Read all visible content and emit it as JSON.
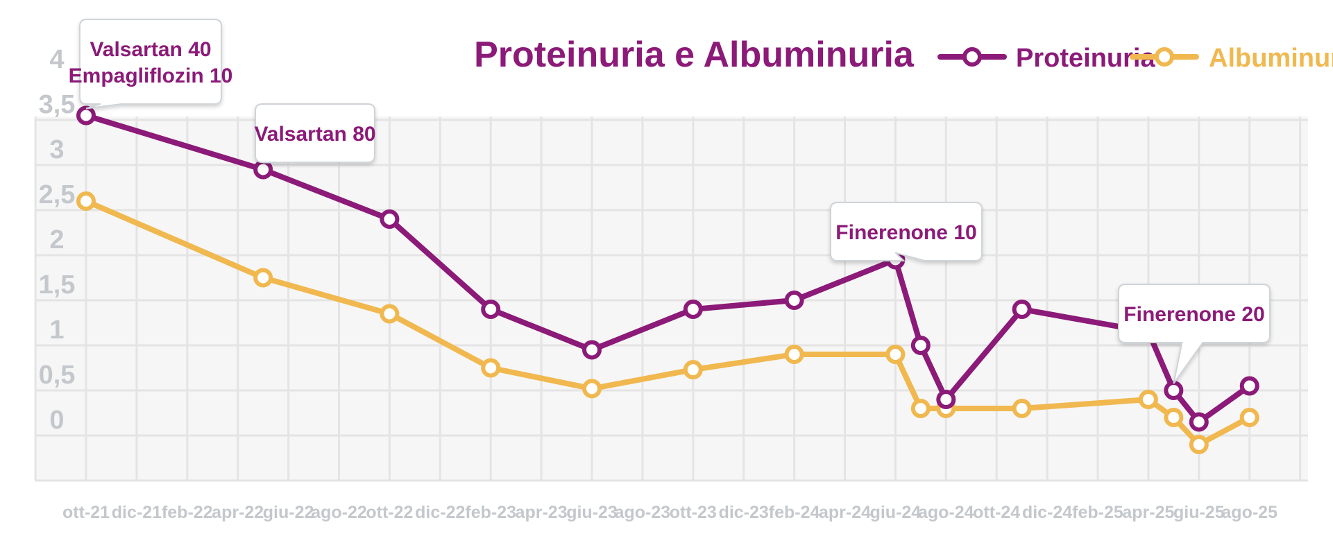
{
  "chart_data": {
    "type": "line",
    "title": "Proteinuria e Albuminuria",
    "xlabel": "",
    "ylabel": "",
    "ylim": [
      0,
      4
    ],
    "yticks": [
      "0",
      "0,5",
      "1",
      "1,5",
      "2",
      "2,5",
      "3",
      "3,5",
      "4"
    ],
    "xticks": [
      "ott-21",
      "dic-21",
      "feb-22",
      "apr-22",
      "giu-22",
      "ago-22",
      "ott-22",
      "dic-22",
      "feb-23",
      "apr-23",
      "giu-23",
      "ago-23",
      "ott-23",
      "dic-23",
      "feb-24",
      "apr-24",
      "giu-24",
      "ago-24",
      "ott-24",
      "dic-24",
      "feb-25",
      "apr-25",
      "giu-25",
      "ago-25"
    ],
    "legend_position": "top-right",
    "series": [
      {
        "name": "Proteinuria",
        "color": "#8b1a78",
        "points": [
          {
            "x": 0,
            "y": 3.55
          },
          {
            "x": 7,
            "y": 2.95
          },
          {
            "x": 12,
            "y": 2.4
          },
          {
            "x": 16,
            "y": 1.4
          },
          {
            "x": 20,
            "y": 0.95
          },
          {
            "x": 24,
            "y": 1.4
          },
          {
            "x": 28,
            "y": 1.5
          },
          {
            "x": 32,
            "y": 1.95
          },
          {
            "x": 33,
            "y": 1.0
          },
          {
            "x": 34,
            "y": 0.4
          },
          {
            "x": 37,
            "y": 1.4
          },
          {
            "x": 42,
            "y": 1.15
          },
          {
            "x": 43,
            "y": 0.5
          },
          {
            "x": 44,
            "y": 0.15
          },
          {
            "x": 46,
            "y": 0.55
          }
        ]
      },
      {
        "name": "Albuminuria",
        "color": "#f0b84f",
        "points": [
          {
            "x": 0,
            "y": 2.6
          },
          {
            "x": 7,
            "y": 1.75
          },
          {
            "x": 12,
            "y": 1.35
          },
          {
            "x": 16,
            "y": 0.75
          },
          {
            "x": 20,
            "y": 0.52
          },
          {
            "x": 24,
            "y": 0.73
          },
          {
            "x": 28,
            "y": 0.9
          },
          {
            "x": 32,
            "y": 0.9
          },
          {
            "x": 33,
            "y": 0.3
          },
          {
            "x": 34,
            "y": 0.3
          },
          {
            "x": 37,
            "y": 0.3
          },
          {
            "x": 42,
            "y": 0.4
          },
          {
            "x": 43,
            "y": 0.2
          },
          {
            "x": 44,
            "y": -0.1
          },
          {
            "x": 46,
            "y": 0.2
          }
        ]
      }
    ],
    "annotations": [
      {
        "lines": [
          "Valsartan 40",
          "Empagliflozin 10"
        ],
        "series": 0,
        "point": 0
      },
      {
        "lines": [
          "Valsartan 80"
        ],
        "series": 0,
        "point": 1
      },
      {
        "lines": [
          "Finerenone 10"
        ],
        "series": 0,
        "point": 7
      },
      {
        "lines": [
          "Finerenone 20"
        ],
        "series": 0,
        "point": 12
      }
    ]
  }
}
